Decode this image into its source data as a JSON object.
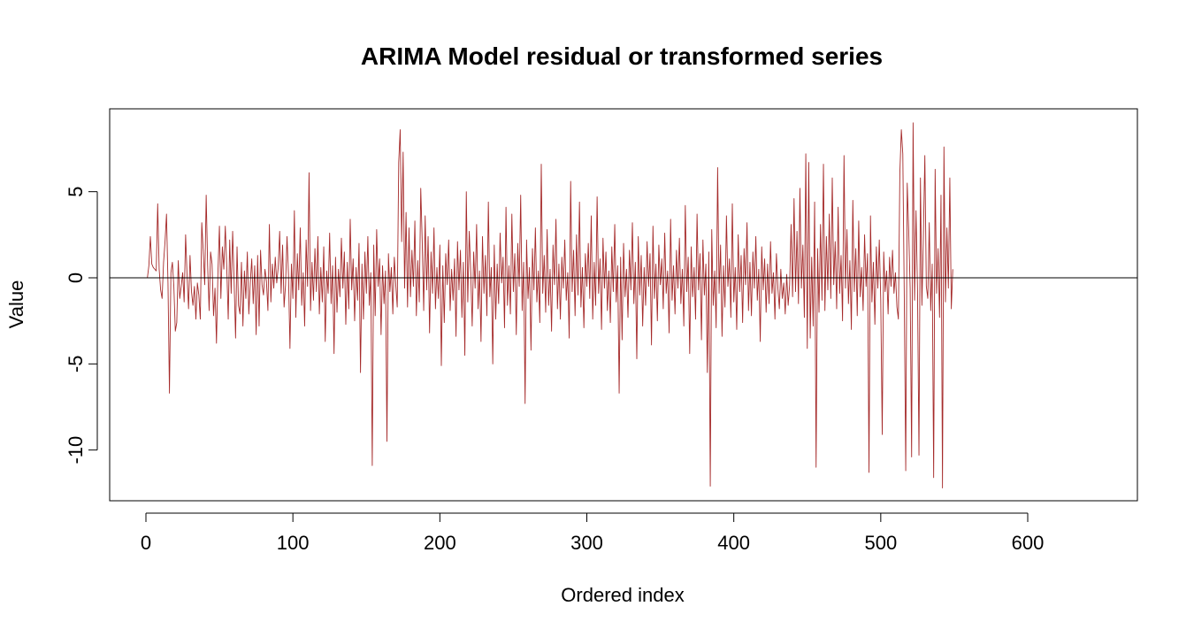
{
  "chart_data": {
    "type": "line",
    "title": "ARIMA Model residual or transformed series",
    "xlabel": "Ordered index",
    "ylabel": "Value",
    "xlim": [
      0,
      650
    ],
    "ylim": [
      -12.9,
      9.7
    ],
    "x_ticks": [
      {
        "value": 0,
        "label": "0"
      },
      {
        "value": 100,
        "label": "100"
      },
      {
        "value": 200,
        "label": "200"
      },
      {
        "value": 300,
        "label": "300"
      },
      {
        "value": 400,
        "label": "400"
      },
      {
        "value": 500,
        "label": "500"
      },
      {
        "value": 600,
        "label": "600"
      }
    ],
    "y_ticks": [
      {
        "value": 5,
        "label": "5"
      },
      {
        "value": 0,
        "label": "0"
      },
      {
        "value": -5,
        "label": "-5"
      },
      {
        "value": -10,
        "label": "-10"
      }
    ],
    "reference_line": {
      "y": 0,
      "color": "#000000"
    },
    "grid": false,
    "legend": "none",
    "series_color": "#a52a2a",
    "series": [
      {
        "x_start": 1,
        "x_step": 1,
        "values": [
          0.0,
          0.7,
          2.4,
          0.8,
          0.6,
          0.5,
          0.4,
          4.3,
          0.5,
          -0.7,
          -1.2,
          0.9,
          2.1,
          3.7,
          -0.3,
          -6.7,
          0.3,
          0.9,
          -0.5,
          -3.1,
          -2.6,
          1.0,
          -1.2,
          -0.5,
          0.3,
          -1.4,
          2.5,
          0.1,
          -1.8,
          1.3,
          -0.8,
          -1.6,
          -0.5,
          -2.4,
          -0.3,
          -1.0,
          -2.4,
          3.2,
          1.5,
          -0.4,
          4.8,
          0.7,
          -1.9,
          1.5,
          0.8,
          -2.2,
          -0.6,
          -3.8,
          0.3,
          3.0,
          -1.2,
          1.8,
          0.5,
          3.0,
          0.6,
          -2.4,
          2.2,
          -0.9,
          2.7,
          -0.2,
          -3.5,
          1.8,
          -1.6,
          -2.1,
          0.9,
          -2.8,
          0.4,
          -1.2,
          1.5,
          -2.1,
          -0.3,
          1.1,
          -1.5,
          0.7,
          -3.3,
          1.3,
          -2.8,
          1.6,
          -0.4,
          -1.0,
          0.5,
          -0.2,
          -1.9,
          3.1,
          -1.4,
          0.8,
          -0.6,
          1.2,
          -0.3,
          0.6,
          2.7,
          -0.9,
          1.9,
          -1.7,
          -0.4,
          2.4,
          0.2,
          -4.1,
          0.8,
          -1.2,
          3.9,
          -2.3,
          1.4,
          -0.7,
          2.9,
          -1.6,
          0.3,
          -2.8,
          2.2,
          -0.5,
          6.1,
          -1.9,
          0.9,
          -1.3,
          1.7,
          -0.8,
          2.4,
          -2.1,
          0.6,
          -1.4,
          1.8,
          -3.7,
          0.4,
          -0.9,
          2.6,
          -1.5,
          0.7,
          -4.4,
          1.2,
          -2.0,
          0.5,
          -1.1,
          2.3,
          -0.6,
          1.5,
          -2.7,
          0.9,
          -1.8,
          3.4,
          -0.7,
          1.1,
          -2.5,
          0.6,
          -1.3,
          2.0,
          -5.5,
          0.8,
          -2.4,
          1.5,
          -0.9,
          2.4,
          -1.6,
          0.3,
          -10.9,
          1.9,
          -2.2,
          2.8,
          -0.5,
          1.1,
          -3.3,
          0.7,
          -1.5,
          0.4,
          -9.5,
          1.4,
          -0.8,
          0.6,
          -2.1,
          1.2,
          -0.4,
          -1.7,
          6.7,
          8.6,
          2.1,
          7.3,
          -0.6,
          3.8,
          -1.7,
          2.9,
          -1.1,
          1.6,
          -0.5,
          3.3,
          -2.2,
          1.0,
          -1.4,
          5.2,
          2.1,
          -1.9,
          3.6,
          -0.7,
          2.4,
          -3.2,
          1.5,
          -0.9,
          2.9,
          -1.8,
          0.6,
          -1.2,
          1.9,
          -5.1,
          0.7,
          -2.6,
          1.4,
          -0.4,
          2.2,
          -1.9,
          0.5,
          -1.3,
          1.1,
          -3.4,
          2.1,
          -0.7,
          1.6,
          -2.3,
          0.9,
          -4.5,
          5.0,
          -1.4,
          2.7,
          0.3,
          -2.8,
          1.5,
          -0.6,
          3.1,
          -1.8,
          0.4,
          -3.7,
          2.4,
          -0.9,
          1.3,
          -2.2,
          4.4,
          -1.1,
          0.6,
          -5.0,
          1.9,
          -2.4,
          0.8,
          -1.5,
          2.6,
          -0.3,
          1.2,
          -2.9,
          4.1,
          -1.6,
          0.7,
          -2.1,
          3.7,
          -0.8,
          1.4,
          -3.3,
          2.0,
          -0.5,
          4.8,
          -1.9,
          0.9,
          -7.3,
          2.2,
          -1.2,
          0.6,
          -4.2,
          1.7,
          -0.7,
          2.9,
          -1.4,
          0.4,
          -2.6,
          6.6,
          -0.9,
          1.3,
          -2.0,
          2.8,
          -1.6,
          0.5,
          -3.1,
          1.9,
          -0.4,
          3.4,
          -1.8,
          0.8,
          -2.4,
          1.2,
          -0.6,
          2.2,
          -1.3,
          0.3,
          -3.5,
          5.6,
          -0.8,
          1.6,
          -2.2,
          2.5,
          -1.0,
          4.4,
          -1.7,
          0.6,
          -2.9,
          1.4,
          -0.5,
          2.0,
          -1.2,
          3.6,
          -2.4,
          0.9,
          -1.6,
          4.7,
          -0.9,
          1.1,
          -3.0,
          2.3,
          -0.6,
          1.5,
          -1.9,
          0.4,
          -2.6,
          1.8,
          -0.8,
          3.1,
          -1.4,
          0.7,
          -6.7,
          1.2,
          -3.6,
          2.0,
          -1.1,
          0.5,
          -2.3,
          1.6,
          -0.7,
          3.2,
          -1.5,
          0.9,
          -4.7,
          2.4,
          -1.0,
          1.3,
          -2.8,
          0.6,
          -1.6,
          2.1,
          -0.5,
          1.4,
          -3.9,
          3.0,
          -1.2,
          0.8,
          -2.5,
          1.9,
          -0.4,
          1.1,
          -1.8,
          2.6,
          -0.9,
          0.4,
          -3.2,
          3.4,
          -1.3,
          0.7,
          -2.1,
          1.6,
          -0.6,
          2.3,
          -1.5,
          0.5,
          -2.8,
          4.2,
          -0.8,
          1.2,
          -4.4,
          1.8,
          -1.1,
          0.6,
          -2.4,
          3.7,
          -0.7,
          1.4,
          -3.6,
          2.2,
          -1.0,
          0.8,
          -5.5,
          1.5,
          -12.1,
          2.8,
          -1.6,
          0.4,
          -2.9,
          6.4,
          -0.9,
          1.9,
          -3.4,
          0.7,
          -1.7,
          3.6,
          -0.5,
          1.1,
          -2.3,
          4.3,
          -1.4,
          0.6,
          -3.0,
          2.5,
          -0.8,
          1.3,
          -2.6,
          1.7,
          -0.4,
          3.2,
          -1.9,
          0.9,
          -2.2,
          1.5,
          -0.6,
          2.4,
          -1.3,
          0.5,
          -3.7,
          1.8,
          -0.7,
          1.1,
          -2.0,
          0.8,
          -1.5,
          2.1,
          -0.9,
          0.3,
          -2.4,
          1.4,
          -0.6,
          -1.8,
          0.5,
          -1.2,
          -0.3,
          -2.1,
          0.2,
          -1.6,
          -0.4,
          3.1,
          -1.1,
          4.6,
          -0.8,
          2.7,
          -1.5,
          5.2,
          -0.6,
          1.9,
          -2.3,
          7.2,
          -4.1,
          6.7,
          -3.5,
          1.2,
          -2.8,
          4.4,
          -11.0,
          1.7,
          -2.0,
          3.1,
          -1.3,
          6.6,
          -1.9,
          2.4,
          -0.7,
          3.7,
          -1.2,
          5.8,
          -0.4,
          2.1,
          -1.8,
          4.1,
          -0.9,
          1.3,
          -2.5,
          7.1,
          -0.6,
          2.8,
          -1.5,
          1.0,
          -3.0,
          4.5,
          -0.8,
          1.7,
          -2.2,
          3.3,
          -1.1,
          0.6,
          -1.9,
          2.5,
          -0.5,
          1.4,
          -11.3,
          3.6,
          -1.4,
          0.9,
          -2.7,
          1.8,
          -0.6,
          2.2,
          -1.3,
          -9.1,
          1.5,
          -0.8,
          0.4,
          -2.1,
          1.2,
          -0.5,
          1.6,
          -0.9,
          0.3,
          -1.7,
          -2.4,
          6.1,
          8.6,
          7.2,
          -1.1,
          -11.2,
          5.5,
          2.8,
          -0.6,
          -10.4,
          9.0,
          -1.3,
          3.9,
          -0.7,
          -10.3,
          5.8,
          -1.6,
          2.4,
          7.1,
          -0.5,
          -1.2,
          3.2,
          -1.9,
          0.8,
          -11.6,
          6.3,
          -0.9,
          1.7,
          -2.3,
          4.8,
          -12.2,
          7.6,
          -1.4,
          2.9,
          -0.6,
          5.8,
          -1.8,
          0.5
        ]
      }
    ]
  }
}
